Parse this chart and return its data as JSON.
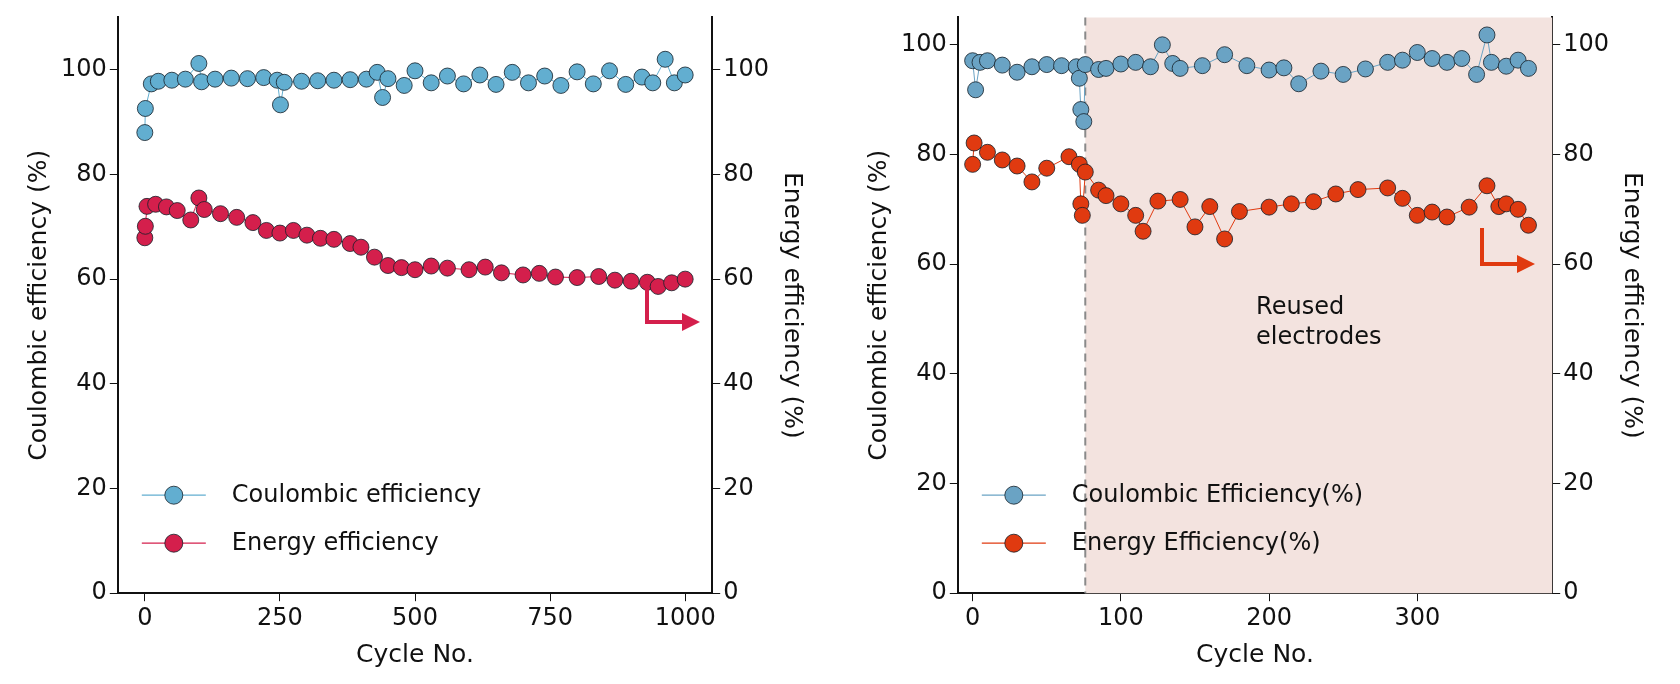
{
  "chart_data": [
    {
      "type": "line",
      "xlabel": "Cycle No.",
      "ylabel": "Coulombic efficiency (%)",
      "y2label": "Energy efficiency (%)",
      "xlim": [
        -50,
        1050
      ],
      "xticks": [
        0,
        250,
        500,
        750,
        1000
      ],
      "ylim": [
        0,
        110
      ],
      "yticks": [
        0,
        20,
        40,
        60,
        80,
        100
      ],
      "y2lim": [
        0,
        110
      ],
      "y2ticks": [
        0,
        20,
        40,
        60,
        80,
        100
      ],
      "grid": false,
      "legend": "bottom left",
      "marker": "circle",
      "line_style": "solid",
      "series": [
        {
          "name": "Coulombic efficiency",
          "color": "#62aed0",
          "x": [
            0,
            1,
            12,
            25,
            50,
            75,
            100,
            105,
            130,
            160,
            190,
            220,
            245,
            251,
            258,
            290,
            320,
            350,
            380,
            410,
            430,
            440,
            450,
            480,
            500,
            530,
            560,
            590,
            620,
            650,
            680,
            710,
            740,
            770,
            800,
            830,
            860,
            890,
            920,
            940,
            963,
            980,
            1000
          ],
          "values": [
            88,
            92.6,
            97.3,
            97.8,
            98,
            98.2,
            101.2,
            97.7,
            98.2,
            98.4,
            98.3,
            98.5,
            98,
            93.3,
            97.6,
            97.8,
            97.9,
            98,
            98.1,
            98.2,
            99.5,
            94.7,
            98.3,
            97,
            99.8,
            97.5,
            98.8,
            97.3,
            99,
            97.2,
            99.5,
            97.5,
            98.8,
            97,
            99.6,
            97.3,
            99.8,
            97.2,
            98.6,
            97.5,
            102,
            97.5,
            99
          ]
        },
        {
          "name": "Energy efficiency",
          "color": "#d41f4c",
          "axis": "y2",
          "x": [
            0,
            1,
            4,
            20,
            40,
            60,
            85,
            100,
            110,
            140,
            170,
            200,
            225,
            250,
            275,
            300,
            325,
            350,
            380,
            400,
            425,
            450,
            475,
            500,
            530,
            560,
            600,
            630,
            660,
            700,
            730,
            760,
            800,
            840,
            870,
            900,
            930,
            950,
            975,
            1000
          ],
          "values": [
            67.9,
            70.1,
            73.9,
            74.3,
            73.8,
            73.1,
            71.3,
            75.5,
            73.3,
            72.5,
            71.8,
            70.8,
            69.3,
            68.8,
            69.3,
            68.4,
            67.8,
            67.6,
            66.8,
            66.1,
            64.2,
            62.6,
            62.2,
            61.8,
            62.5,
            62.1,
            61.8,
            62.3,
            61.2,
            60.8,
            61.1,
            60.4,
            60.3,
            60.5,
            59.8,
            59.6,
            59.4,
            58.6,
            59.3,
            60
          ]
        }
      ]
    },
    {
      "type": "line",
      "xlabel": "Cycle No.",
      "ylabel": "Coulombic efficiency (%)",
      "y2label": "Energy efficiency (%)",
      "xlim": [
        -10,
        391
      ],
      "xticks": [
        0,
        100,
        200,
        300
      ],
      "ylim": [
        0,
        105
      ],
      "yticks": [
        0,
        20,
        40,
        60,
        80,
        100
      ],
      "y2lim": [
        0,
        105
      ],
      "y2ticks": [
        0,
        20,
        40,
        60,
        80,
        100
      ],
      "grid": false,
      "legend": "bottom left",
      "marker": "circle",
      "line_style": "solid",
      "ref_lines": [
        {
          "axis": "x",
          "value": 76,
          "color": "#8a8a8a",
          "line_style": "dashed"
        }
      ],
      "bands": [
        {
          "axis": "x",
          "from": 76,
          "to": 391,
          "label": "Reused electrodes",
          "color": "#f3e3df"
        }
      ],
      "series": [
        {
          "name": "Coulombic Efficiency(%)",
          "color": "#6aa3c4",
          "x": [
            0,
            2,
            5,
            10,
            20,
            30,
            40,
            50,
            60,
            70,
            72,
            73,
            75,
            76,
            85,
            90,
            100,
            110,
            120,
            128,
            135,
            140,
            155,
            170,
            185,
            200,
            210,
            220,
            235,
            250,
            265,
            280,
            290,
            300,
            310,
            320,
            330,
            340,
            347,
            350,
            360,
            368,
            375
          ],
          "values": [
            97.1,
            91.8,
            96.8,
            97.1,
            96.3,
            95,
            96,
            96.4,
            96.2,
            96,
            93.9,
            88.2,
            86,
            96.4,
            95.5,
            95.7,
            96.5,
            96.8,
            96,
            100,
            96.6,
            95.7,
            96.2,
            98.2,
            96.2,
            95.4,
            95.8,
            92.9,
            95.2,
            94.6,
            95.6,
            96.8,
            97.2,
            98.6,
            97.5,
            96.8,
            97.5,
            94.6,
            101.8,
            96.8,
            96.1,
            97.2,
            95.7
          ]
        },
        {
          "name": "Energy Efficiency(%)",
          "color": "#e03a10",
          "axis": "y2",
          "x": [
            0,
            1,
            10,
            20,
            30,
            40,
            50,
            65,
            72,
            73,
            74,
            76,
            85,
            90,
            100,
            110,
            115,
            125,
            140,
            150,
            160,
            170,
            180,
            200,
            215,
            230,
            245,
            260,
            280,
            290,
            300,
            310,
            320,
            335,
            347,
            355,
            360,
            368,
            375
          ],
          "values": [
            78.2,
            82.1,
            80.4,
            79,
            77.9,
            75,
            77.5,
            79.6,
            78.2,
            71,
            68.9,
            76.8,
            73.5,
            72.5,
            71,
            68.9,
            66,
            71.5,
            71.8,
            66.8,
            70.5,
            64.6,
            69.6,
            70.4,
            71,
            71.4,
            72.8,
            73.6,
            73.9,
            72,
            68.9,
            69.5,
            68.6,
            70.4,
            74.3,
            70.5,
            71,
            70,
            67.1
          ]
        }
      ]
    }
  ]
}
